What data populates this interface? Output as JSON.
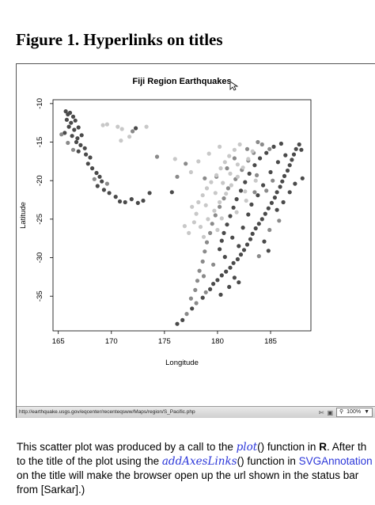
{
  "page": {
    "heading": "Figure 1. Hyperlinks on titles"
  },
  "statusbar": {
    "url": "http://earthquake.usgs.gov/eqcenter/recenteqsww/Maps/region/S_Pacific.php",
    "zoom": "100%",
    "icons": [
      "cursor-icon",
      "image-icon",
      "dropdown-icon"
    ]
  },
  "caption": {
    "l1_a": "This scatter plot was produced by a call to the ",
    "l1_fn": "plot",
    "l1_b": "() function in ",
    "l1_bold": "R",
    "l1_c": ". After th",
    "l2_a": "to the title of the plot using the ",
    "l2_fn": "addAxesLinks",
    "l2_b": "() function in ",
    "l2_link": "SVGAnnotation",
    "l3": "on the title will make the browser open up the url shown in the status bar",
    "l4": "from [Sarkar].)"
  },
  "chart_data": {
    "type": "scatter",
    "title": "Fiji Region Earthquakes",
    "xlabel": "Longitude",
    "ylabel": "Latitude",
    "xlim": [
      164.5,
      188.8
    ],
    "ylim": [
      -39.5,
      -9.5
    ],
    "xticks": [
      165,
      170,
      175,
      180,
      185
    ],
    "yticks": [
      -10,
      -15,
      -20,
      -25,
      -30,
      -35
    ],
    "tick_labels_x": [
      "165",
      "170",
      "175",
      "180",
      "185"
    ],
    "tick_labels_y": [
      "-10",
      "-15",
      "-20",
      "-25",
      "-30",
      "-35"
    ],
    "colors": {
      "deep": "#4a4a4a",
      "mid": "#8a8a8a",
      "shallow": "#c8c8c8"
    },
    "points": [
      [
        165.7,
        -11.0,
        "deep"
      ],
      [
        165.9,
        -11.4,
        "deep"
      ],
      [
        166.1,
        -11.2,
        "deep"
      ],
      [
        166.4,
        -11.7,
        "deep"
      ],
      [
        165.8,
        -12.1,
        "deep"
      ],
      [
        166.2,
        -12.5,
        "deep"
      ],
      [
        166.6,
        -12.2,
        "deep"
      ],
      [
        166.0,
        -13.0,
        "deep"
      ],
      [
        166.5,
        -13.4,
        "deep"
      ],
      [
        166.9,
        -13.1,
        "deep"
      ],
      [
        165.6,
        -13.8,
        "deep"
      ],
      [
        166.3,
        -14.2,
        "deep"
      ],
      [
        166.8,
        -14.5,
        "deep"
      ],
      [
        167.2,
        -14.1,
        "deep"
      ],
      [
        166.7,
        -15.0,
        "deep"
      ],
      [
        167.1,
        -15.4,
        "deep"
      ],
      [
        167.5,
        -15.8,
        "deep"
      ],
      [
        166.9,
        -16.2,
        "deep"
      ],
      [
        167.6,
        -16.6,
        "deep"
      ],
      [
        168.0,
        -17.0,
        "deep"
      ],
      [
        167.8,
        -17.8,
        "deep"
      ],
      [
        168.2,
        -18.4,
        "deep"
      ],
      [
        168.6,
        -19.0,
        "deep"
      ],
      [
        168.9,
        -19.5,
        "deep"
      ],
      [
        169.1,
        -20.1,
        "deep"
      ],
      [
        168.7,
        -20.7,
        "deep"
      ],
      [
        169.3,
        -21.2,
        "deep"
      ],
      [
        169.8,
        -21.6,
        "deep"
      ],
      [
        170.4,
        -22.1,
        "deep"
      ],
      [
        170.8,
        -22.7,
        "deep"
      ],
      [
        171.3,
        -22.8,
        "deep"
      ],
      [
        171.9,
        -22.4,
        "deep"
      ],
      [
        172.5,
        -22.9,
        "deep"
      ],
      [
        173.0,
        -22.6,
        "deep"
      ],
      [
        173.6,
        -21.6,
        "deep"
      ],
      [
        165.3,
        -14.0,
        "mid"
      ],
      [
        165.9,
        -15.1,
        "mid"
      ],
      [
        166.4,
        -16.0,
        "mid"
      ],
      [
        168.4,
        -19.8,
        "mid"
      ],
      [
        169.6,
        -20.4,
        "mid"
      ],
      [
        169.2,
        -12.8,
        "shallow"
      ],
      [
        169.6,
        -12.7,
        "shallow"
      ],
      [
        170.6,
        -13.0,
        "shallow"
      ],
      [
        171.0,
        -13.3,
        "shallow"
      ],
      [
        170.9,
        -14.8,
        "shallow"
      ],
      [
        171.7,
        -14.3,
        "shallow"
      ],
      [
        172.0,
        -13.6,
        "mid"
      ],
      [
        172.3,
        -13.2,
        "deep"
      ],
      [
        173.3,
        -13.0,
        "shallow"
      ],
      [
        176.2,
        -38.6,
        "deep"
      ],
      [
        176.7,
        -38.1,
        "deep"
      ],
      [
        177.1,
        -37.3,
        "mid"
      ],
      [
        177.6,
        -36.6,
        "deep"
      ],
      [
        178.0,
        -35.9,
        "mid"
      ],
      [
        178.6,
        -35.2,
        "deep"
      ],
      [
        178.9,
        -34.5,
        "mid"
      ],
      [
        179.3,
        -34.1,
        "deep"
      ],
      [
        179.6,
        -33.4,
        "deep"
      ],
      [
        180.0,
        -32.9,
        "deep"
      ],
      [
        180.4,
        -32.3,
        "deep"
      ],
      [
        180.8,
        -31.8,
        "deep"
      ],
      [
        181.2,
        -31.3,
        "deep"
      ],
      [
        181.5,
        -30.7,
        "deep"
      ],
      [
        181.9,
        -30.2,
        "deep"
      ],
      [
        182.2,
        -29.6,
        "deep"
      ],
      [
        182.5,
        -29.0,
        "deep"
      ],
      [
        182.8,
        -28.3,
        "deep"
      ],
      [
        183.1,
        -27.6,
        "deep"
      ],
      [
        183.3,
        -26.9,
        "deep"
      ],
      [
        183.6,
        -26.2,
        "deep"
      ],
      [
        183.9,
        -25.6,
        "deep"
      ],
      [
        184.2,
        -25.0,
        "deep"
      ],
      [
        184.5,
        -24.3,
        "deep"
      ],
      [
        184.8,
        -23.6,
        "deep"
      ],
      [
        185.1,
        -22.9,
        "deep"
      ],
      [
        185.4,
        -22.2,
        "deep"
      ],
      [
        185.6,
        -21.5,
        "deep"
      ],
      [
        185.9,
        -20.8,
        "deep"
      ],
      [
        186.1,
        -20.1,
        "deep"
      ],
      [
        186.3,
        -19.4,
        "deep"
      ],
      [
        186.6,
        -18.7,
        "deep"
      ],
      [
        186.8,
        -18.0,
        "deep"
      ],
      [
        187.0,
        -17.3,
        "deep"
      ],
      [
        187.2,
        -16.6,
        "deep"
      ],
      [
        187.4,
        -15.9,
        "deep"
      ],
      [
        187.7,
        -15.3,
        "deep"
      ],
      [
        187.9,
        -16.0,
        "deep"
      ],
      [
        186.0,
        -15.2,
        "deep"
      ],
      [
        185.3,
        -15.6,
        "deep"
      ],
      [
        184.6,
        -16.4,
        "deep"
      ],
      [
        184.0,
        -17.1,
        "deep"
      ],
      [
        183.5,
        -18.0,
        "deep"
      ],
      [
        183.0,
        -19.1,
        "deep"
      ],
      [
        182.6,
        -20.2,
        "deep"
      ],
      [
        182.2,
        -21.3,
        "deep"
      ],
      [
        181.8,
        -22.4,
        "deep"
      ],
      [
        181.5,
        -23.5,
        "deep"
      ],
      [
        181.2,
        -24.6,
        "deep"
      ],
      [
        180.9,
        -25.7,
        "deep"
      ],
      [
        180.6,
        -26.8,
        "deep"
      ],
      [
        180.4,
        -27.8,
        "deep"
      ],
      [
        180.2,
        -28.9,
        "deep"
      ],
      [
        180.7,
        -29.9,
        "deep"
      ],
      [
        181.6,
        -32.6,
        "deep"
      ],
      [
        182.0,
        -33.2,
        "deep"
      ],
      [
        181.1,
        -33.8,
        "deep"
      ],
      [
        180.3,
        -34.8,
        "deep"
      ],
      [
        184.4,
        -27.9,
        "deep"
      ],
      [
        184.8,
        -29.1,
        "deep"
      ],
      [
        185.6,
        -23.8,
        "deep"
      ],
      [
        186.2,
        -22.8,
        "deep"
      ],
      [
        186.8,
        -21.5,
        "deep"
      ],
      [
        187.3,
        -20.4,
        "deep"
      ],
      [
        188.0,
        -19.7,
        "deep"
      ],
      [
        183.8,
        -21.9,
        "deep"
      ],
      [
        184.3,
        -20.6,
        "deep"
      ],
      [
        185.0,
        -18.9,
        "deep"
      ],
      [
        185.7,
        -17.6,
        "deep"
      ],
      [
        186.4,
        -16.7,
        "deep"
      ],
      [
        182.9,
        -24.4,
        "deep"
      ],
      [
        182.4,
        -26.1,
        "deep"
      ],
      [
        183.2,
        -23.1,
        "deep"
      ],
      [
        181.4,
        -27.4,
        "deep"
      ],
      [
        182.0,
        -28.5,
        "deep"
      ],
      [
        181.0,
        -21.0,
        "mid"
      ],
      [
        181.7,
        -19.8,
        "mid"
      ],
      [
        182.3,
        -18.6,
        "mid"
      ],
      [
        182.9,
        -17.4,
        "mid"
      ],
      [
        183.4,
        -16.4,
        "mid"
      ],
      [
        184.2,
        -15.3,
        "mid"
      ],
      [
        184.9,
        -15.9,
        "mid"
      ],
      [
        180.6,
        -22.3,
        "mid"
      ],
      [
        180.2,
        -23.4,
        "mid"
      ],
      [
        179.8,
        -24.5,
        "mid"
      ],
      [
        179.5,
        -25.6,
        "mid"
      ],
      [
        179.3,
        -26.8,
        "mid"
      ],
      [
        179.0,
        -28.0,
        "mid"
      ],
      [
        178.8,
        -29.2,
        "mid"
      ],
      [
        178.6,
        -30.5,
        "mid"
      ],
      [
        178.3,
        -31.7,
        "mid"
      ],
      [
        178.1,
        -33.0,
        "mid"
      ],
      [
        177.9,
        -34.2,
        "mid"
      ],
      [
        177.5,
        -35.3,
        "mid"
      ],
      [
        184.6,
        -21.3,
        "mid"
      ],
      [
        185.2,
        -20.0,
        "mid"
      ],
      [
        183.7,
        -19.3,
        "mid"
      ],
      [
        180.9,
        -18.4,
        "mid"
      ],
      [
        181.6,
        -17.1,
        "mid"
      ],
      [
        179.9,
        -19.5,
        "mid"
      ],
      [
        185.8,
        -25.2,
        "mid"
      ],
      [
        184.9,
        -26.4,
        "mid"
      ],
      [
        183.9,
        -29.8,
        "mid"
      ],
      [
        179.6,
        -30.9,
        "mid"
      ],
      [
        178.7,
        -32.4,
        "mid"
      ],
      [
        176.2,
        -19.5,
        "mid"
      ],
      [
        177.0,
        -17.8,
        "mid"
      ],
      [
        178.8,
        -19.7,
        "mid"
      ],
      [
        182.8,
        -15.9,
        "mid"
      ],
      [
        183.8,
        -15.0,
        "mid"
      ],
      [
        178.2,
        -22.8,
        "shallow"
      ],
      [
        178.6,
        -21.9,
        "shallow"
      ],
      [
        179.0,
        -21.0,
        "shallow"
      ],
      [
        179.4,
        -20.2,
        "shallow"
      ],
      [
        179.9,
        -19.3,
        "shallow"
      ],
      [
        180.3,
        -18.4,
        "shallow"
      ],
      [
        180.7,
        -17.6,
        "shallow"
      ],
      [
        181.1,
        -16.8,
        "shallow"
      ],
      [
        181.6,
        -16.0,
        "shallow"
      ],
      [
        182.1,
        -15.3,
        "shallow"
      ],
      [
        178.0,
        -24.3,
        "shallow"
      ],
      [
        177.8,
        -25.4,
        "shallow"
      ],
      [
        178.4,
        -26.0,
        "shallow"
      ],
      [
        179.1,
        -25.0,
        "shallow"
      ],
      [
        179.7,
        -23.9,
        "shallow"
      ],
      [
        180.2,
        -22.8,
        "shallow"
      ],
      [
        180.8,
        -21.7,
        "shallow"
      ],
      [
        181.3,
        -20.6,
        "shallow"
      ],
      [
        181.9,
        -19.5,
        "shallow"
      ],
      [
        182.4,
        -18.3,
        "shallow"
      ],
      [
        182.9,
        -17.2,
        "shallow"
      ],
      [
        183.3,
        -16.2,
        "shallow"
      ],
      [
        177.6,
        -23.4,
        "shallow"
      ],
      [
        178.9,
        -23.2,
        "shallow"
      ],
      [
        179.8,
        -21.6,
        "shallow"
      ],
      [
        180.5,
        -20.3,
        "shallow"
      ],
      [
        181.2,
        -19.1,
        "shallow"
      ],
      [
        181.9,
        -17.9,
        "shallow"
      ],
      [
        180.0,
        -26.4,
        "shallow"
      ],
      [
        176.9,
        -25.9,
        "shallow"
      ],
      [
        177.3,
        -26.8,
        "shallow"
      ],
      [
        178.7,
        -27.3,
        "shallow"
      ],
      [
        182.6,
        -21.4,
        "shallow"
      ],
      [
        183.6,
        -20.0,
        "shallow"
      ],
      [
        180.4,
        -24.9,
        "shallow"
      ],
      [
        176.0,
        -17.2,
        "shallow"
      ],
      [
        177.5,
        -18.9,
        "shallow"
      ],
      [
        178.2,
        -17.5,
        "shallow"
      ],
      [
        179.2,
        -16.5,
        "shallow"
      ],
      [
        180.2,
        -15.6,
        "shallow"
      ],
      [
        175.7,
        -21.5,
        "deep"
      ],
      [
        174.3,
        -16.9,
        "mid"
      ],
      [
        181.8,
        -24.1,
        "shallow"
      ],
      [
        182.7,
        -22.6,
        "shallow"
      ],
      [
        183.5,
        -21.5,
        "mid"
      ]
    ]
  }
}
